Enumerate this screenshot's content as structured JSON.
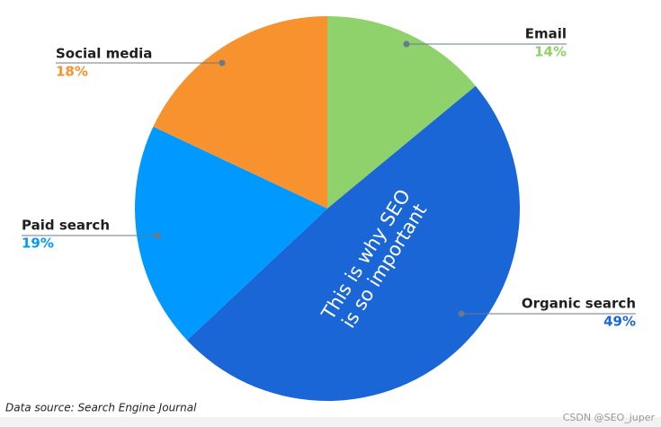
{
  "chart_data": {
    "type": "pie",
    "categories": [
      "Email",
      "Organic search",
      "Paid search",
      "Social media"
    ],
    "values": [
      14,
      49,
      19,
      18
    ],
    "value_labels": [
      "14%",
      "49%",
      "19%",
      "18%"
    ],
    "colors": [
      "#8fd16a",
      "#1a66d6",
      "#0099ff",
      "#f7922f"
    ],
    "annotation": [
      "This is why SEO",
      "is so important"
    ],
    "source": "Data source: Search Engine Journal"
  },
  "watermark": "CSDN @SEO_juper"
}
